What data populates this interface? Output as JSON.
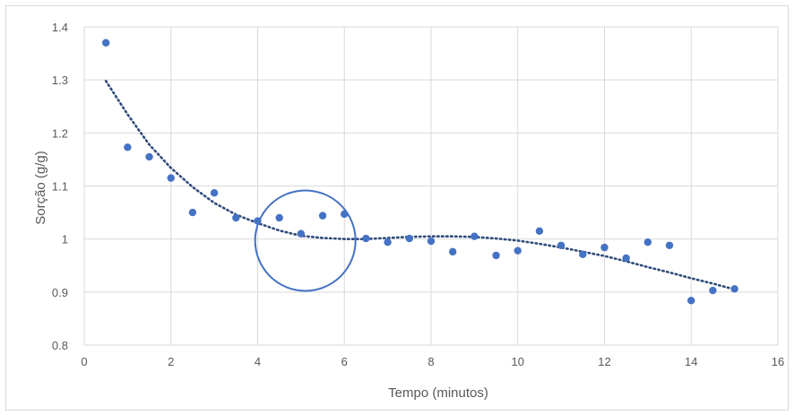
{
  "chart_data": {
    "type": "scatter",
    "title": "",
    "xlabel": "Tempo (minutos)",
    "ylabel": "Sorção (g/g)",
    "xlim": [
      0,
      16
    ],
    "ylim": [
      0.8,
      1.4
    ],
    "xticks": [
      0,
      2,
      4,
      6,
      8,
      10,
      12,
      14,
      16
    ],
    "yticks": [
      0.8,
      0.9,
      1,
      1.1,
      1.2,
      1.3,
      1.4
    ],
    "grid": true,
    "legend": "none",
    "marker_color": "#4472c4",
    "trendline": {
      "style": "dotted",
      "color": "#2f4b7c"
    },
    "annotation": {
      "shape": "circle",
      "center": [
        5.1,
        0.997
      ],
      "color": "#4472c4"
    },
    "series": [
      {
        "x": [
          0.5,
          1,
          1.5,
          2,
          2.5,
          3,
          3.5,
          4,
          4.5,
          5,
          5.5,
          6,
          6.5,
          7,
          7.5,
          8,
          8.5,
          9,
          9.5,
          10,
          10.5,
          11,
          11.5,
          12,
          12.5,
          13,
          13.5,
          14,
          14.5,
          15
        ],
        "y": [
          1.37,
          1.173,
          1.155,
          1.115,
          1.05,
          1.087,
          1.04,
          1.034,
          1.04,
          1.01,
          1.044,
          1.047,
          1.001,
          0.994,
          1.001,
          0.996,
          0.976,
          1.005,
          0.969,
          0.978,
          1.015,
          0.988,
          0.971,
          0.984,
          0.964,
          0.994,
          0.988,
          0.884,
          0.903,
          0.906
        ]
      }
    ],
    "trend": {
      "x": [
        0.5,
        1,
        1.5,
        2,
        2.5,
        3,
        3.5,
        4,
        4.5,
        5,
        5.5,
        6,
        6.5,
        7,
        7.5,
        8,
        8.5,
        9,
        9.5,
        10,
        10.5,
        11,
        11.5,
        12,
        12.5,
        13,
        13.5,
        14,
        14.5,
        15
      ],
      "y": [
        1.298,
        1.235,
        1.178,
        1.134,
        1.098,
        1.068,
        1.046,
        1.03,
        1.016,
        1.006,
        1.002,
        1.0,
        1.0,
        1.002,
        1.004,
        1.005,
        1.005,
        1.004,
        1.001,
        0.997,
        0.991,
        0.984,
        0.976,
        0.968,
        0.958,
        0.947,
        0.937,
        0.926,
        0.916,
        0.905
      ]
    }
  }
}
